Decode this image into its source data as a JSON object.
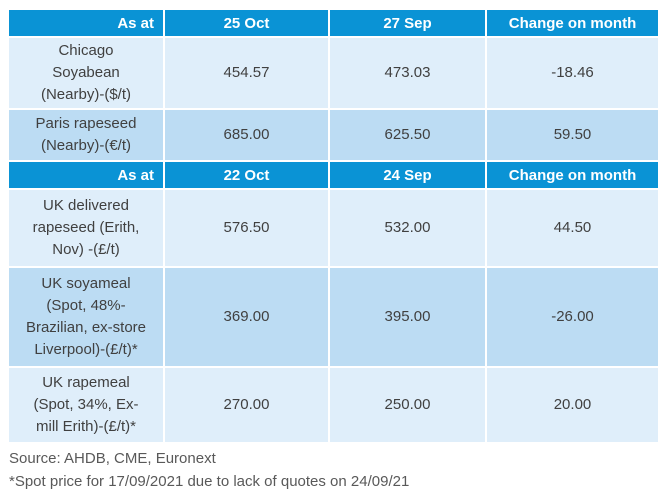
{
  "colors": {
    "header_bg": "#0a93d5",
    "header_text": "#ffffff",
    "row_light_bg": "#dfeefa",
    "row_mid_bg": "#bcdcf3",
    "body_text": "#404040",
    "footer_text": "#595959",
    "cell_border": "#ffffff"
  },
  "table": {
    "sections": [
      {
        "header": {
          "as_at": "As at",
          "date_current": "25 Oct",
          "date_previous": "27 Sep",
          "change": "Change on month"
        },
        "rows": [
          {
            "label": "Chicago\nSoyabean\n(Nearby)-($/t)",
            "current": "454.57",
            "previous": "473.03",
            "change": "-18.46"
          },
          {
            "label": "Paris rapeseed\n(Nearby)-(€/t)",
            "current": "685.00",
            "previous": "625.50",
            "change": "59.50"
          }
        ]
      },
      {
        "header": {
          "as_at": "As at",
          "date_current": "22 Oct",
          "date_previous": "24 Sep",
          "change": "Change on month"
        },
        "rows": [
          {
            "label": "UK delivered\nrapeseed (Erith,\nNov) -(£/t)",
            "current": "576.50",
            "previous": "532.00",
            "change": "44.50"
          },
          {
            "label": "UK soyameal\n(Spot, 48%-\nBrazilian, ex-store\nLiverpool)-(£/t)*",
            "current": "369.00",
            "previous": "395.00",
            "change": "-26.00"
          },
          {
            "label": "UK rapemeal\n(Spot, 34%, Ex-\nmill Erith)-(£/t)*",
            "current": "270.00",
            "previous": "250.00",
            "change": "20.00"
          }
        ]
      }
    ]
  },
  "footer": {
    "source": "Source: AHDB, CME, Euronext",
    "footnote": "*Spot price for 17/09/2021 due to lack of quotes on 24/09/21"
  }
}
